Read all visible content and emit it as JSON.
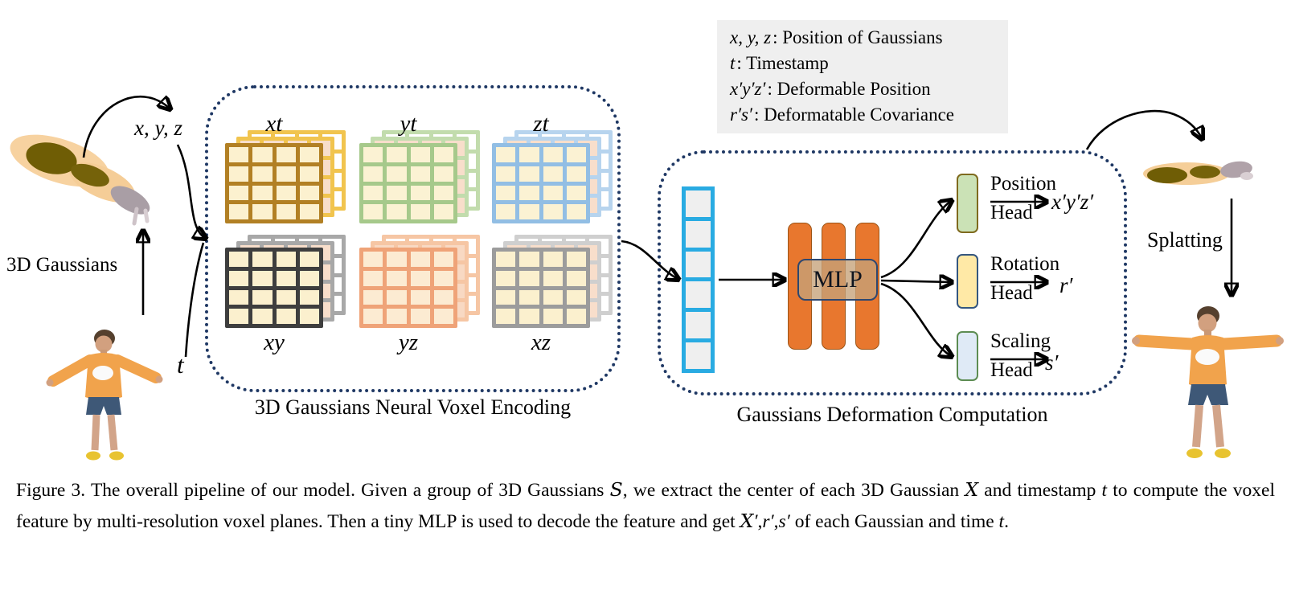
{
  "legend": {
    "items": [
      {
        "math": "x, y, z",
        "desc": ": Position of Gaussians"
      },
      {
        "math": "t",
        "desc": ": Timestamp"
      },
      {
        "math": "x′y′z′",
        "desc": ": Deformable Position"
      },
      {
        "math": "r′s′",
        "desc": ": Deformatable Covariance"
      }
    ]
  },
  "left": {
    "xyz_label": "x, y, z",
    "t_label": "t",
    "gaussians_label": "3D Gaussians"
  },
  "encoder": {
    "caption": "3D Gaussians Neural Voxel Encoding",
    "planes": [
      {
        "label": "xt",
        "front": "#B28024",
        "light": "#F1C44E",
        "cell": "#FCF1CF",
        "mid_fill": "#F8DECB"
      },
      {
        "label": "yt",
        "front": "#A6C98B",
        "light": "#C2DCAD",
        "cell": "#FBF2D3",
        "mid_fill": "#F8DECB"
      },
      {
        "label": "zt",
        "front": "#92BEE4",
        "light": "#B7D4EE",
        "cell": "#FBF2D3",
        "mid_fill": "#F8DECB"
      },
      {
        "label": "xy",
        "front": "#3E3E3E",
        "light": "#A8A8A8",
        "cell": "#FBF0CE",
        "mid_fill": "#F8DECB"
      },
      {
        "label": "yz",
        "front": "#EFA378",
        "light": "#F6C6A4",
        "cell": "#FCEBD2",
        "mid_fill": "#F8D9C3"
      },
      {
        "label": "xz",
        "front": "#9C9C9C",
        "light": "#CFCFCF",
        "cell": "#FBF0CE",
        "mid_fill": "#F8DECB"
      }
    ]
  },
  "vector": {
    "cells": 6,
    "border": "#29ABE2",
    "cell_fill": "#EFEFEF"
  },
  "decoder": {
    "caption": "Gaussians Deformation Computation",
    "mlp_label": "MLP",
    "heads": [
      {
        "name": "position-head",
        "line1": "Position",
        "line2": "Head",
        "output": "x′y′z′",
        "fill": "#CBE2B6",
        "border": "#7F6A1E"
      },
      {
        "name": "rotation-head",
        "line1": "Rotation",
        "line2": "Head",
        "output": "r′",
        "fill": "#FFE9A6",
        "border": "#34567F"
      },
      {
        "name": "scaling-head",
        "line1": "Scaling",
        "line2": "Head",
        "output": "s′",
        "fill": "#DFEAF6",
        "border": "#5C8C52"
      }
    ]
  },
  "right": {
    "splatting_label": "Splatting"
  },
  "caption": {
    "segments": [
      {
        "t": "Figure 3. The overall pipeline of our model. Given a group of 3D Gaussians ",
        "c": ""
      },
      {
        "t": "S",
        "c": "cal"
      },
      {
        "t": ", we extract the center of each 3D Gaussian ",
        "c": ""
      },
      {
        "t": "X",
        "c": "cal"
      },
      {
        "t": " and timestamp ",
        "c": ""
      },
      {
        "t": "t",
        "c": "it"
      },
      {
        "t": " to compute the voxel feature by multi-resolution voxel planes. Then a tiny MLP is used to decode the feature and get ",
        "c": ""
      },
      {
        "t": "X",
        "c": "cal"
      },
      {
        "t": "′",
        "c": "it"
      },
      {
        "t": ",",
        "c": ""
      },
      {
        "t": "r′",
        "c": "it"
      },
      {
        "t": ",",
        "c": ""
      },
      {
        "t": "s′",
        "c": "it"
      },
      {
        "t": " of each Gaussian and time ",
        "c": ""
      },
      {
        "t": "t",
        "c": "it"
      },
      {
        "t": ".",
        "c": ""
      }
    ]
  },
  "colors": {
    "dotted_box": "#1F3864",
    "mlp_bar": "#E8772E",
    "legend_bg": "#EFEFEF",
    "arrow": "#000000"
  }
}
